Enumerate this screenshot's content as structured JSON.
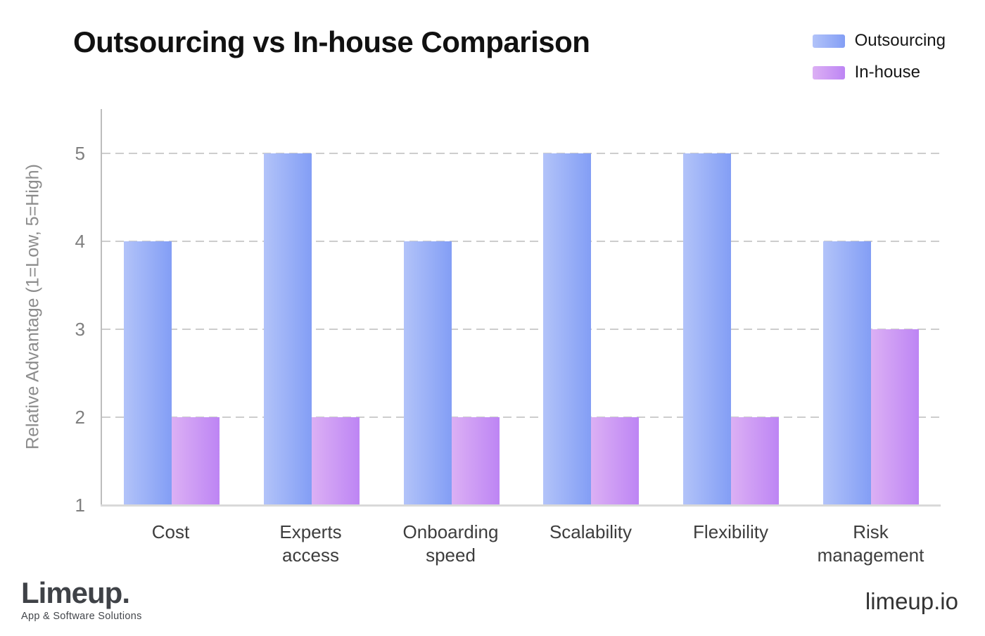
{
  "chart_data": {
    "type": "bar",
    "title": "Outsourcing vs In-house Comparison",
    "categories": [
      "Cost",
      "Experts access",
      "Onboarding speed",
      "Scalability",
      "Flexibility",
      "Risk management"
    ],
    "series": [
      {
        "name": "Outsourcing",
        "values": [
          4,
          5,
          4,
          5,
          5,
          4
        ],
        "gradient": [
          "#b2c3f9",
          "#839ef5"
        ]
      },
      {
        "name": "In-house",
        "values": [
          2,
          2,
          2,
          2,
          2,
          3
        ],
        "gradient": [
          "#dcb0f4",
          "#bd85f4"
        ]
      }
    ],
    "xlabel": "",
    "ylabel": "Relative Advantage (1=Low, 5=High)",
    "yticks": [
      1,
      2,
      3,
      4,
      5
    ],
    "ylim": [
      1,
      5.5
    ],
    "grid": "horizontal-dashed",
    "grid_color": "#cdcdcd",
    "legend_position": "top-right"
  },
  "footer": {
    "logo_text": "Limeup.",
    "logo_subtitle": "App & Software Solutions",
    "site": "limeup.io"
  }
}
